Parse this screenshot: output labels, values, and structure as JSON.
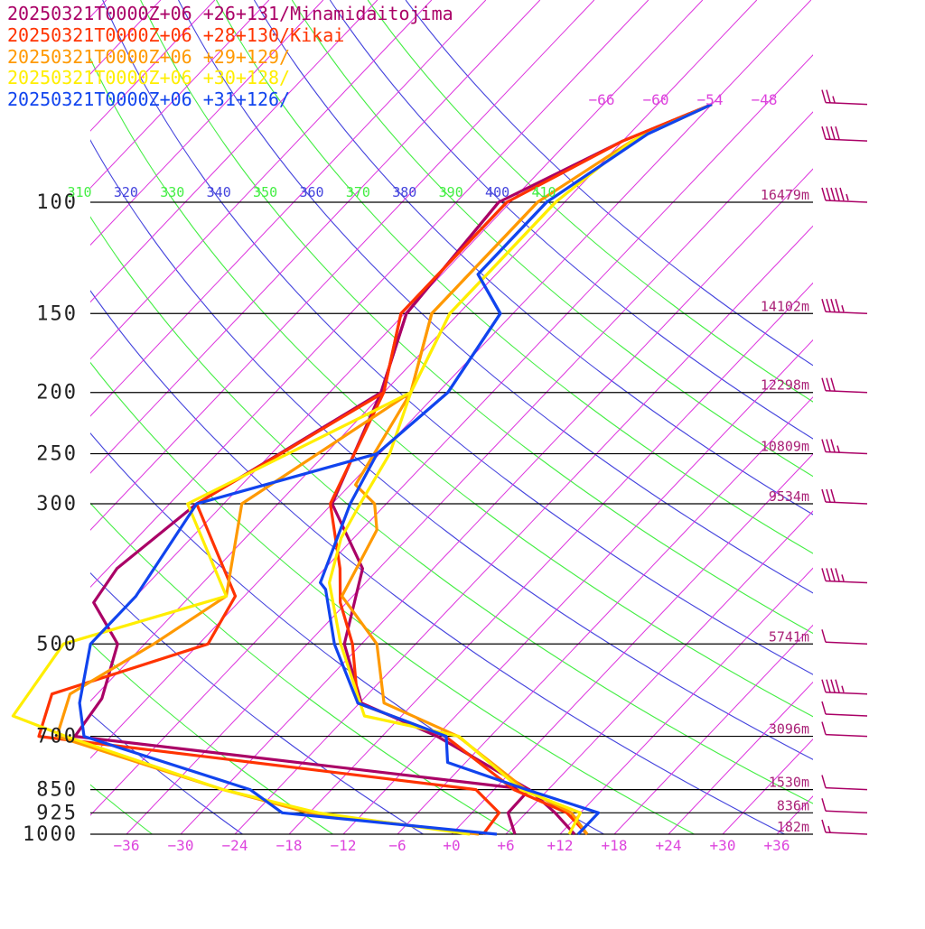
{
  "chart_data": {
    "type": "line",
    "title": "",
    "xlabel": "",
    "ylabel": "",
    "x_axis": {
      "ticks": [
        -36,
        -30,
        -24,
        -18,
        -12,
        -6,
        0,
        6,
        12,
        18,
        24,
        30,
        36
      ],
      "tick_labels": [
        "−36",
        "−30",
        "−24",
        "−18",
        "−12",
        "−6",
        "+0",
        "+6",
        "+12",
        "+18",
        "+24",
        "+30",
        "+36"
      ],
      "xlim": [
        -40,
        40
      ]
    },
    "y_axis": {
      "scale": "log",
      "ticks": [
        100,
        150,
        200,
        250,
        300,
        500,
        700,
        850,
        925,
        1000
      ],
      "tick_labels": [
        "100",
        "150",
        "200",
        "250",
        "300",
        "500",
        "700",
        "850",
        "925",
        "1000"
      ]
    },
    "heights": [
      {
        "p": 100,
        "label": "16479m"
      },
      {
        "p": 150,
        "label": "14102m"
      },
      {
        "p": 200,
        "label": "12298m"
      },
      {
        "p": 250,
        "label": "10809m"
      },
      {
        "p": 300,
        "label": "9534m"
      },
      {
        "p": 500,
        "label": "5741m"
      },
      {
        "p": 700,
        "label": "3096m"
      },
      {
        "p": 850,
        "label": "1530m"
      },
      {
        "p": 925,
        "label": "836m"
      },
      {
        "p": 1000,
        "label": "182m"
      }
    ],
    "isotherm_labels": [
      "−66",
      "−60",
      "−54",
      "−48"
    ],
    "theta_labels": [
      {
        "text": "310",
        "color": "#44ee44"
      },
      {
        "text": "320",
        "color": "#4444dd"
      },
      {
        "text": "330",
        "color": "#44ee44"
      },
      {
        "text": "340",
        "color": "#4444dd"
      },
      {
        "text": "350",
        "color": "#44ee44"
      },
      {
        "text": "360",
        "color": "#4444dd"
      },
      {
        "text": "370",
        "color": "#44ee44"
      },
      {
        "text": "380",
        "color": "#4444dd"
      },
      {
        "text": "390",
        "color": "#44ee44"
      },
      {
        "text": "400",
        "color": "#4444dd"
      },
      {
        "text": "410",
        "color": "#44ee44"
      }
    ],
    "series": [
      {
        "name": "20250321T0000Z+06 +26+131/Minamidaitojima",
        "color": "#aa0066",
        "temperature": [
          [
            -48,
            70
          ],
          [
            -54,
            80
          ],
          [
            -61.3,
            100
          ],
          [
            -59.8,
            150
          ],
          [
            -54.3,
            200
          ],
          [
            -48.0,
            300
          ],
          [
            -37.8,
            380
          ],
          [
            -31.9,
            500
          ],
          [
            -23.8,
            620
          ],
          [
            -11.9,
            700
          ],
          [
            3.9,
            850
          ],
          [
            9.2,
            925
          ],
          [
            13.6,
            1000
          ]
        ],
        "dewpoint": [
          [
            -61.3,
            100
          ],
          [
            -59.8,
            150
          ],
          [
            -54.3,
            200
          ],
          [
            -63,
            300
          ],
          [
            -65,
            380
          ],
          [
            -64,
            430
          ],
          [
            -57,
            500
          ],
          [
            -53,
            610
          ],
          [
            -52,
            700
          ],
          [
            3.9,
            850
          ],
          [
            4.0,
            925
          ],
          [
            7.0,
            1000
          ]
        ]
      },
      {
        "name": "20250321T0000Z+06 +28+130/Kikai",
        "color": "#ff3300",
        "temperature": [
          [
            -48,
            70
          ],
          [
            -54,
            80
          ],
          [
            -60.4,
            100
          ],
          [
            -60.4,
            150
          ],
          [
            -54,
            200
          ],
          [
            -48.2,
            300
          ],
          [
            -40.3,
            380
          ],
          [
            -36.7,
            430
          ],
          [
            -31.0,
            500
          ],
          [
            -24.2,
            620
          ],
          [
            -11.0,
            700
          ],
          [
            2.2,
            850
          ],
          [
            10.5,
            925
          ],
          [
            15.0,
            1000
          ]
        ],
        "dewpoint": [
          [
            -60.4,
            100
          ],
          [
            -60.4,
            150
          ],
          [
            -54,
            200
          ],
          [
            -63,
            300
          ],
          [
            -49,
            420
          ],
          [
            -47,
            500
          ],
          [
            -59,
            600
          ],
          [
            -56,
            700
          ],
          [
            -2.0,
            850
          ],
          [
            3.0,
            925
          ],
          [
            3.5,
            1000
          ]
        ]
      },
      {
        "name": "20250321T0000Z+06 +29+129/",
        "color": "#ff9900",
        "temperature": [
          [
            -48,
            70
          ],
          [
            -53,
            80
          ],
          [
            -57,
            100
          ],
          [
            -57,
            150
          ],
          [
            -51,
            200
          ],
          [
            -47.4,
            280
          ],
          [
            -43.3,
            300
          ],
          [
            -40.3,
            330
          ],
          [
            -37.2,
            420
          ],
          [
            -28.3,
            500
          ],
          [
            -21.3,
            620
          ],
          [
            -9.6,
            700
          ],
          [
            3.5,
            850
          ],
          [
            11.0,
            925
          ],
          [
            15.0,
            1000
          ]
        ],
        "dewpoint": [
          [
            -57,
            100
          ],
          [
            -57,
            150
          ],
          [
            -51,
            200
          ],
          [
            -58,
            300
          ],
          [
            -50,
            420
          ],
          [
            -53,
            500
          ],
          [
            -57,
            600
          ],
          [
            -54,
            700
          ],
          [
            -30,
            850
          ],
          [
            -18,
            925
          ],
          [
            3.0,
            1000
          ]
        ]
      },
      {
        "name": "20250321T0000Z+06 +30+128/",
        "color": "#ffee00",
        "temperature": [
          [
            -48,
            70
          ],
          [
            -53,
            80
          ],
          [
            -55,
            100
          ],
          [
            -55,
            150
          ],
          [
            -51,
            200
          ],
          [
            -46.9,
            250
          ],
          [
            -44.9,
            300
          ],
          [
            -43.4,
            340
          ],
          [
            -40,
            400
          ],
          [
            -32.3,
            500
          ],
          [
            -22.1,
            650
          ],
          [
            -9.5,
            700
          ],
          [
            3.0,
            850
          ],
          [
            12.0,
            925
          ],
          [
            13.0,
            1000
          ]
        ],
        "dewpoint": [
          [
            -55,
            100
          ],
          [
            -55,
            150
          ],
          [
            -51,
            200
          ],
          [
            -64,
            300
          ],
          [
            -50,
            420
          ],
          [
            -63,
            500
          ],
          [
            -61,
            650
          ],
          [
            -53,
            700
          ],
          [
            -30,
            850
          ],
          [
            -17,
            925
          ],
          [
            2.0,
            1000
          ]
        ]
      },
      {
        "name": "20250321T0000Z+06 +31+126/",
        "color": "#1144ee",
        "temperature": [
          [
            -48,
            70
          ],
          [
            -52,
            78
          ],
          [
            -56,
            100
          ],
          [
            -56,
            130
          ],
          [
            -49.4,
            150
          ],
          [
            -46.9,
            200
          ],
          [
            -48.3,
            250
          ],
          [
            -46.0,
            300
          ],
          [
            -41,
            400
          ],
          [
            -39.7,
            410
          ],
          [
            -33.0,
            500
          ],
          [
            -24.2,
            620
          ],
          [
            -10.9,
            700
          ],
          [
            -8.0,
            770
          ],
          [
            3.6,
            850
          ],
          [
            14.0,
            925
          ],
          [
            14.0,
            1000
          ]
        ],
        "dewpoint": [
          [
            -56,
            100
          ],
          [
            -56,
            130
          ],
          [
            -49.4,
            150
          ],
          [
            -46.9,
            200
          ],
          [
            -48.3,
            250
          ],
          [
            -63,
            300
          ],
          [
            -60,
            420
          ],
          [
            -60,
            500
          ],
          [
            -55,
            620
          ],
          [
            -51,
            700
          ],
          [
            -27,
            850
          ],
          [
            -21,
            925
          ],
          [
            5.0,
            1000
          ]
        ]
      }
    ],
    "wind_barbs": [
      {
        "p": 70,
        "speed": 15
      },
      {
        "p": 80,
        "speed": 40
      },
      {
        "p": 100,
        "speed": 45
      },
      {
        "p": 150,
        "speed": 35
      },
      {
        "p": 200,
        "speed": 30
      },
      {
        "p": 250,
        "speed": 25
      },
      {
        "p": 300,
        "speed": 30
      },
      {
        "p": 400,
        "speed": 35
      },
      {
        "p": 500,
        "speed": 10
      },
      {
        "p": 600,
        "speed": 35
      },
      {
        "p": 650,
        "speed": 10
      },
      {
        "p": 700,
        "speed": 10
      },
      {
        "p": 850,
        "speed": 10
      },
      {
        "p": 925,
        "speed": 10
      },
      {
        "p": 1000,
        "speed": 5
      }
    ]
  }
}
